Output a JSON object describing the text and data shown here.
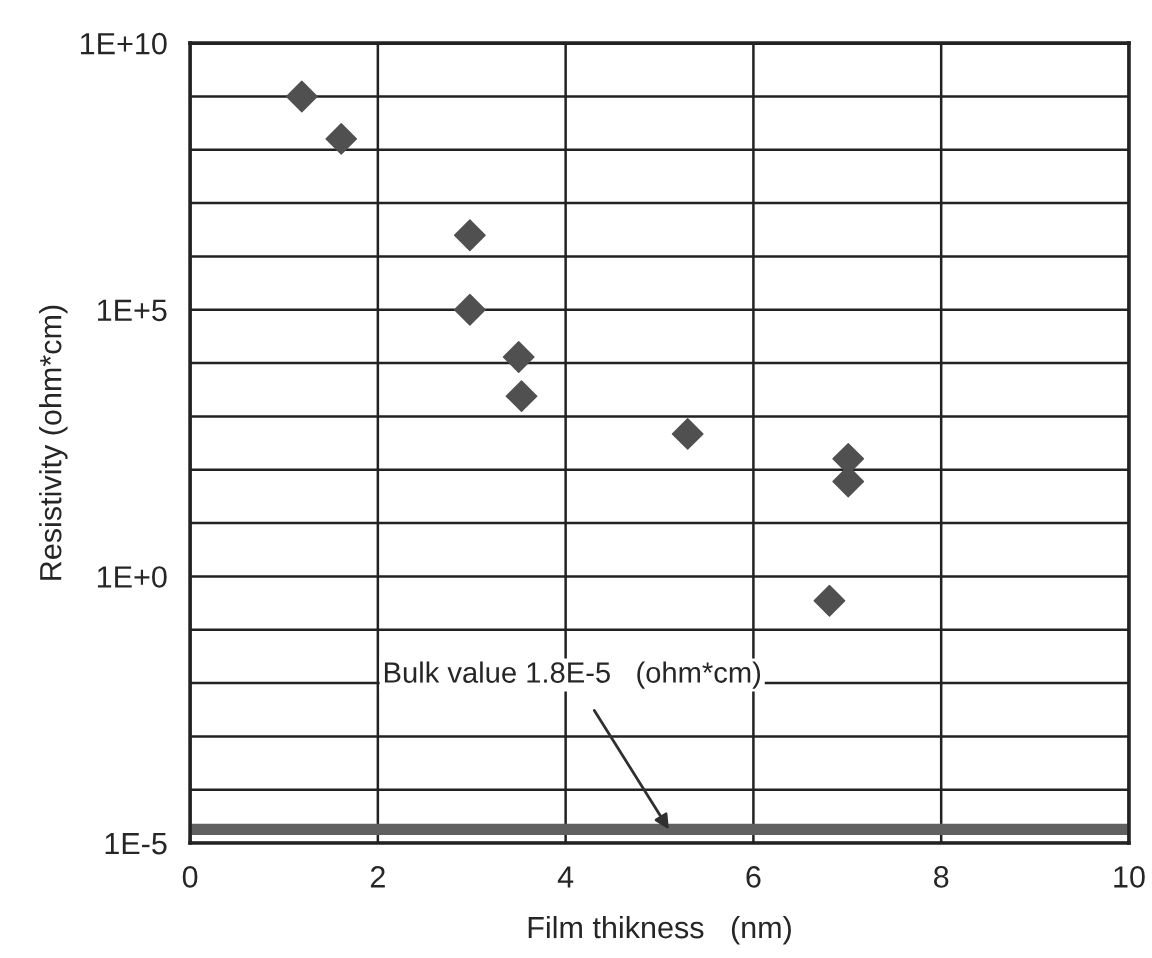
{
  "chart_data": {
    "type": "scatter",
    "xlabel": "Film thikness   (nm)",
    "ylabel": "Resistivity (ohm*cm)",
    "x": [
      1.19,
      1.61,
      2.98,
      2.98,
      3.5,
      3.53,
      5.3,
      7.01,
      7.01,
      6.81
    ],
    "series": [
      {
        "color": "#505050",
        "values": [
          1000000000.0,
          160000000.0,
          2500000.0,
          100000.0,
          13000.0,
          2400.0,
          470,
          160,
          60,
          0.35
        ]
      }
    ],
    "log": "y",
    "marker": "diamond",
    "grid": true,
    "xlim": [
      0,
      10
    ],
    "xticks": [
      0,
      2,
      4,
      6,
      8,
      10
    ],
    "ylim": [
      1e-05,
      10000000000.0
    ],
    "yticks": [
      {
        "value": 1e-05,
        "label": "1E-5"
      },
      {
        "value": 0.0001,
        "label": null
      },
      {
        "value": 0.001,
        "label": null
      },
      {
        "value": 0.01,
        "label": null
      },
      {
        "value": 0.1,
        "label": null
      },
      {
        "value": 1,
        "label": "1E+0"
      },
      {
        "value": 10,
        "label": null
      },
      {
        "value": 100,
        "label": null
      },
      {
        "value": 1000,
        "label": null
      },
      {
        "value": 10000,
        "label": null
      },
      {
        "value": 100000,
        "label": "1E+5"
      },
      {
        "value": 1000000.0,
        "label": null
      },
      {
        "value": 10000000.0,
        "label": null
      },
      {
        "value": 100000000.0,
        "label": null
      },
      {
        "value": 1000000000.0,
        "label": null
      },
      {
        "value": 10000000000.0,
        "label": "1E+10"
      }
    ],
    "ref_lines": [
      {
        "axis": "y",
        "value": 1.8e-05,
        "label": "Bulk value 1.8E-5   (ohm*cm)",
        "color": "#606060"
      }
    ]
  }
}
